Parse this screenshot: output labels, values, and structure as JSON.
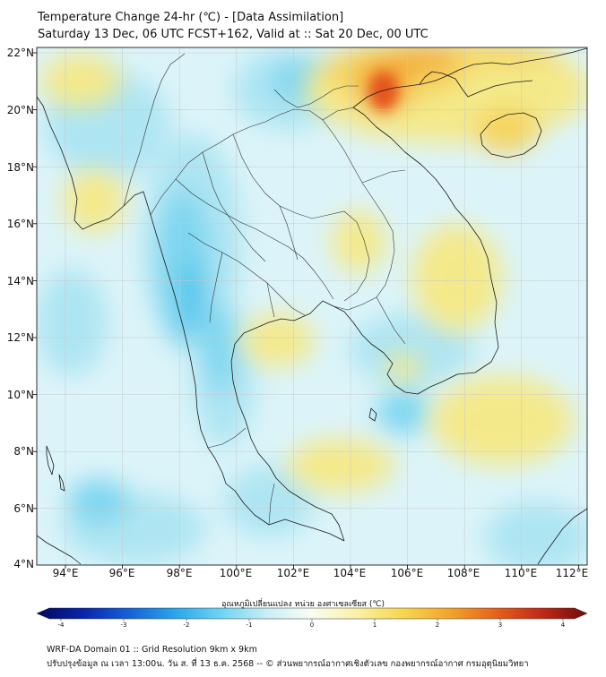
{
  "header": {
    "title_line1": "Temperature Change 24-hr (℃) - [Data Assimilation]",
    "title_line2": "Saturday 13 Dec, 06 UTC FCST+162, Valid at :: Sat 20 Dec, 00 UTC"
  },
  "map": {
    "lat_labels": [
      "22°N",
      "20°N",
      "18°N",
      "16°N",
      "14°N",
      "12°N",
      "10°N",
      "8°N",
      "6°N",
      "4°N"
    ],
    "lon_labels": [
      "94°E",
      "96°E",
      "98°E",
      "100°E",
      "102°E",
      "104°E",
      "106°E",
      "108°E",
      "110°E",
      "112°E"
    ],
    "background_color": "#dcf4f9",
    "warm_spot_colors": [
      "#f4e98a",
      "#f6d35a",
      "#f2a031",
      "#e4541d"
    ],
    "cool_spot_colors": [
      "#aee5f3",
      "#7dd6f0",
      "#4fc4ec"
    ]
  },
  "colorbar": {
    "title": "อุณหภูมิเปลี่ยนแปลง หน่วย องศาเซลเซียส (℃)",
    "ticks": [
      "-4",
      "-3",
      "-2",
      "-1",
      "0",
      "1",
      "2",
      "3",
      "4"
    ],
    "colors": [
      "#04085e",
      "#0a24a8",
      "#1660d6",
      "#2aa4ea",
      "#6dd3f2",
      "#c7eef7",
      "#fafdf2",
      "#f9f1a2",
      "#f7d54f",
      "#f2a52c",
      "#e4621d",
      "#c02a17",
      "#6e0c0c"
    ]
  },
  "footer": {
    "line1": "WRF-DA Domain 01 :: Grid Resolution 9km x 9km",
    "line2": "ปรับปรุงข้อมูล ณ เวลา 13:00น. วัน ส. ที่ 13 ธ.ค. 2568 -- © ส่วนพยากรณ์อากาศเชิงตัวเลข กองพยากรณ์อากาศ กรมอุตุนิยมวิทยา"
  }
}
